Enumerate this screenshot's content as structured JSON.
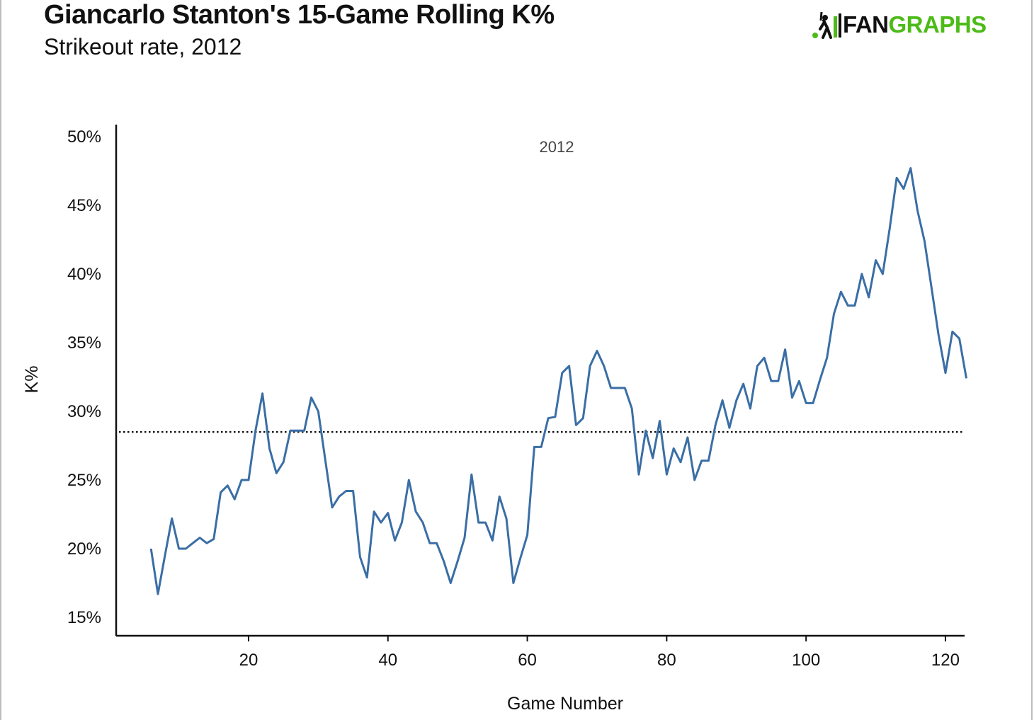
{
  "header": {
    "title": "Giancarlo Stanton's 15-Game Rolling K%",
    "subtitle": "Strikeout rate, 2012"
  },
  "logo": {
    "text_dark": "FAN",
    "text_green": "GRAPHS",
    "icon": "batter-icon",
    "colors": {
      "dark": "#111111",
      "green": "#4cbb17"
    }
  },
  "chart_data": {
    "type": "line",
    "xlabel": "Game Number",
    "ylabel": "K%",
    "annotation": "2012",
    "xlim": [
      1,
      123
    ],
    "ylim": [
      14,
      51
    ],
    "x_ticks": [
      20,
      40,
      60,
      80,
      100,
      120
    ],
    "x_tick_labels": [
      "20",
      "40",
      "60",
      "80",
      "100",
      "120"
    ],
    "y_ticks": [
      15,
      20,
      25,
      30,
      35,
      40,
      45,
      50
    ],
    "y_tick_labels": [
      "15%",
      "20%",
      "25%",
      "30%",
      "35%",
      "40%",
      "45%",
      "50%"
    ],
    "reference_line": {
      "y": 28.5,
      "style": "dotted",
      "color": "#111111"
    },
    "line_color": "#3a6ea5",
    "series": [
      {
        "x": [
          6,
          7,
          8,
          9,
          10,
          11,
          12,
          13,
          14,
          15,
          16,
          17,
          18,
          19,
          20,
          21,
          22,
          23,
          24,
          25,
          26,
          27,
          28,
          29,
          30,
          31,
          32,
          33,
          34,
          35,
          36,
          37,
          38,
          39,
          40,
          41,
          42,
          43,
          44,
          45,
          46,
          47,
          48,
          49,
          50,
          51,
          52,
          53,
          54,
          55,
          56,
          57,
          58,
          59,
          60,
          61,
          62,
          63,
          64,
          65,
          66,
          67,
          68,
          69,
          70,
          71,
          72,
          73,
          74,
          75,
          76,
          77,
          78,
          79,
          80,
          81,
          82,
          83,
          84,
          85,
          86,
          87,
          88,
          89,
          90,
          91,
          92,
          93,
          94,
          95,
          96,
          97,
          98,
          99,
          100,
          101,
          102,
          103,
          104,
          105,
          106,
          107,
          108,
          109,
          110,
          111,
          112,
          113,
          114,
          115,
          116,
          117,
          118,
          119,
          120,
          121,
          122,
          123
        ],
        "y": [
          20.0,
          16.7,
          19.5,
          22.2,
          20.0,
          20.0,
          20.4,
          20.8,
          20.4,
          20.7,
          24.1,
          24.6,
          23.6,
          25.0,
          25.0,
          28.6,
          31.3,
          27.3,
          25.5,
          26.3,
          28.6,
          28.6,
          28.6,
          31.0,
          30.0,
          26.5,
          23.0,
          23.8,
          24.2,
          24.2,
          19.4,
          17.9,
          22.7,
          21.9,
          22.6,
          20.6,
          21.9,
          25.0,
          22.7,
          21.9,
          20.4,
          20.4,
          19.1,
          17.5,
          19.1,
          20.8,
          25.4,
          21.9,
          21.9,
          20.6,
          23.8,
          22.2,
          17.5,
          19.3,
          21.0,
          27.4,
          27.4,
          29.5,
          29.6,
          32.8,
          33.3,
          29.0,
          29.5,
          33.3,
          34.4,
          33.3,
          31.7,
          31.7,
          31.7,
          30.2,
          25.4,
          28.6,
          26.6,
          29.3,
          25.4,
          27.3,
          26.3,
          28.1,
          25.0,
          26.4,
          26.4,
          29.0,
          30.8,
          28.8,
          30.8,
          32.0,
          30.2,
          33.3,
          33.9,
          32.2,
          32.2,
          34.5,
          31.0,
          32.2,
          30.6,
          30.6,
          32.3,
          33.9,
          37.1,
          38.7,
          37.7,
          37.7,
          40.0,
          38.3,
          41.0,
          40.0,
          43.3,
          47.0,
          46.2,
          47.7,
          44.6,
          42.4,
          39.0,
          35.6,
          32.8,
          35.8,
          35.3,
          32.4
        ]
      }
    ]
  }
}
